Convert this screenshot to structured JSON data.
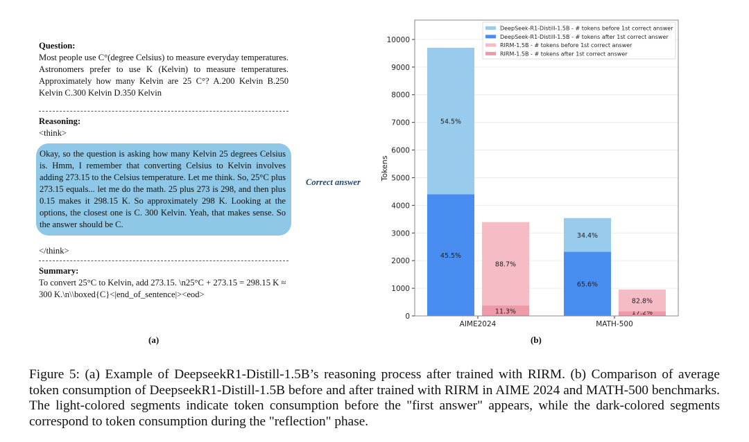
{
  "panel_a": {
    "question_label": "Question:",
    "question_text": "Most people use C°(degree Celsius) to measure everyday temperatures. Astronomers prefer to use K (Kelvin) to measure temperatures. Approximately how many Kelvin are 25 C°? A.200 Kelvin B.250 Kelvin C.300 Kelvin D.350 Kelvin",
    "reasoning_label": "Reasoning:",
    "think_open": "<think>",
    "reasoning_text": "Okay, so the question is asking how many Kelvin 25 degrees Celsius is. Hmm, I remember that converting Celsius to Kelvin involves adding 273.15 to the Celsius temperature. Let me think. So, 25°C plus 273.15 equals... let me do the math. 25 plus 273 is 298, and then plus 0.15 makes it 298.15 K. So approximately 298 K. Looking at the options, the closest one is C. 300 Kelvin. Yeah, that makes sense. So the answer should be C.",
    "annotation": "Correct answer",
    "think_close": "</think>",
    "summary_label": "Summary:",
    "summary_text": "To convert 25°C to Kelvin, add 273.15. \\n25°C + 273.15 = 298.15 K ≈ 300 K.\\n\\\\boxed{C}<|end_of_sentence|><eod>",
    "sublabel": "(a)",
    "bubble_color": "#8ec8e6"
  },
  "chart_data": {
    "type": "bar",
    "stacked": true,
    "categories": [
      "AIME2024",
      "MATH-500"
    ],
    "ylabel": "Tokens",
    "xlabel": "",
    "ylim": [
      0,
      10700
    ],
    "yticks": [
      0,
      1000,
      2000,
      3000,
      4000,
      5000,
      6000,
      7000,
      8000,
      9000,
      10000
    ],
    "grid": true,
    "legend_position": "top-right",
    "models": [
      {
        "series": [
          {
            "name": "DeepSeek-R1-Distill-1.5B - # tokens after 1st correct answer",
            "values": [
              4400,
              2320
            ],
            "labels": [
              "45.5%",
              "65.6%"
            ],
            "color": "#4a8df0"
          },
          {
            "name": "DeepSeek-R1-Distill-1.5B - # tokens before 1st correct answer",
            "values": [
              5300,
              1220
            ],
            "labels": [
              "54.5%",
              "34.4%"
            ],
            "color": "#99cbec"
          }
        ]
      },
      {
        "series": [
          {
            "name": "RIRM-1.5B - # tokens after 1st correct answer",
            "values": [
              383,
              165
            ],
            "labels": [
              "11.3%",
              "17.2%"
            ],
            "color": "#ee9aa8"
          },
          {
            "name": "RIRM-1.5B - # tokens before 1st correct answer",
            "values": [
              3010,
              790
            ],
            "labels": [
              "88.7%",
              "82.8%"
            ],
            "color": "#f5bcc6"
          }
        ]
      }
    ],
    "legend": [
      {
        "name": "DeepSeek-R1-Distill-1.5B - # tokens before 1st correct answer",
        "color": "#99cbec"
      },
      {
        "name": "DeepSeek-R1-Distill-1.5B - # tokens after 1st correct answer",
        "color": "#4a8df0"
      },
      {
        "name": "RIRM-1.5B - # tokens before 1st correct answer",
        "color": "#f5bcc6"
      },
      {
        "name": "RIRM-1.5B - # tokens after 1st correct answer",
        "color": "#ee9aa8"
      }
    ],
    "sublabel": "(b)"
  },
  "caption": "Figure 5: (a) Example of DeepseekR1-Distill-1.5B’s reasoning process after trained with RIRM. (b) Comparison of average token consumption of DeepseekR1-Distill-1.5B before and after trained with RIRM in AIME 2024 and MATH-500 benchmarks. The light-colored segments indicate token consumption before the \"first answer\" appears, while the dark-colored segments correspond to token consumption during the \"reflection\" phase."
}
